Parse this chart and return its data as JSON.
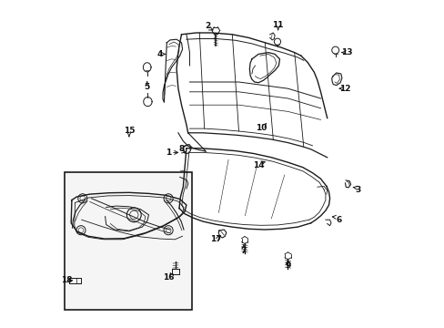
{
  "background_color": "#ffffff",
  "figsize": [
    4.89,
    3.6
  ],
  "dpi": 100,
  "line_color": "#1a1a1a",
  "label_fontsize": 6.5,
  "label_color": "#111111",
  "labels": {
    "1": [
      0.335,
      0.535,
      0.375,
      0.535
    ],
    "2": [
      0.455,
      0.92,
      0.48,
      0.905
    ],
    "3": [
      0.915,
      0.42,
      0.89,
      0.43
    ],
    "4": [
      0.31,
      0.835,
      0.335,
      0.835
    ],
    "5": [
      0.27,
      0.735,
      0.27,
      0.76
    ],
    "6": [
      0.855,
      0.33,
      0.825,
      0.34
    ],
    "7": [
      0.565,
      0.235,
      0.565,
      0.255
    ],
    "8": [
      0.375,
      0.545,
      0.39,
      0.535
    ],
    "9": [
      0.7,
      0.19,
      0.7,
      0.21
    ],
    "10": [
      0.62,
      0.61,
      0.635,
      0.625
    ],
    "11": [
      0.67,
      0.925,
      0.67,
      0.9
    ],
    "12": [
      0.875,
      0.73,
      0.855,
      0.73
    ],
    "13": [
      0.88,
      0.84,
      0.855,
      0.84
    ],
    "14": [
      0.61,
      0.495,
      0.64,
      0.51
    ],
    "15": [
      0.215,
      0.6,
      0.215,
      0.575
    ],
    "16": [
      0.335,
      0.155,
      0.34,
      0.17
    ],
    "17": [
      0.48,
      0.27,
      0.49,
      0.285
    ],
    "18": [
      0.025,
      0.145,
      0.05,
      0.145
    ]
  }
}
